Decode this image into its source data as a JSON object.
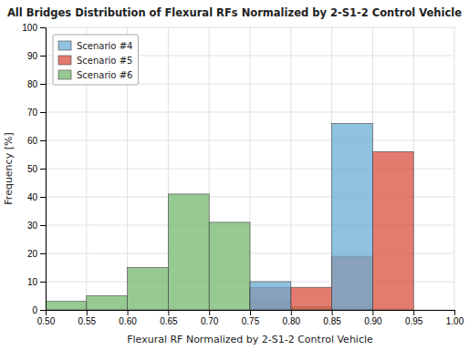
{
  "chart_data": {
    "type": "histogram",
    "title": "All Bridges Distribution of Flexural RFs Normalized by 2-S1-2 Control Vehicle",
    "x_label": "Flexural RF Normalized by 2-S1-2 Control Vehicle",
    "y_label": "Frequency [%]",
    "bins": [
      0.5,
      0.55,
      0.6,
      0.65,
      0.7,
      0.75,
      0.8,
      0.85,
      0.9,
      0.95,
      1.0
    ],
    "series": [
      {
        "name": "Scenario #4",
        "color": "#6baed6",
        "values": [
          0,
          0,
          0,
          0,
          0,
          10,
          0,
          66,
          0,
          0
        ]
      },
      {
        "name": "Scenario #5",
        "color": "#d94f3d",
        "values": [
          0,
          0,
          0,
          0,
          0,
          8,
          8,
          19,
          56,
          0
        ]
      },
      {
        "name": "Scenario #6",
        "color": "#74b86e",
        "values": [
          3,
          5,
          15,
          41,
          31,
          3,
          1,
          1,
          0,
          0
        ]
      }
    ],
    "xlim": [
      0.5,
      1.0
    ],
    "ylim": [
      0,
      100
    ],
    "xticks": [
      {
        "value": 0.5,
        "label": "0.50"
      },
      {
        "value": 0.55,
        "label": "0.55"
      },
      {
        "value": 0.6,
        "label": "0.60"
      },
      {
        "value": 0.65,
        "label": "0.65"
      },
      {
        "value": 0.7,
        "label": "0.70"
      },
      {
        "value": 0.75,
        "label": "0.75"
      },
      {
        "value": 0.8,
        "label": "0.80"
      },
      {
        "value": 0.85,
        "label": "0.85"
      },
      {
        "value": 0.9,
        "label": "0.90"
      },
      {
        "value": 0.95,
        "label": "0.95"
      },
      {
        "value": 1.0,
        "label": "1.00"
      }
    ],
    "yticks": [
      0,
      10,
      20,
      30,
      40,
      50,
      60,
      70,
      80,
      90,
      100
    ],
    "grid": true,
    "legend": "top-left"
  }
}
